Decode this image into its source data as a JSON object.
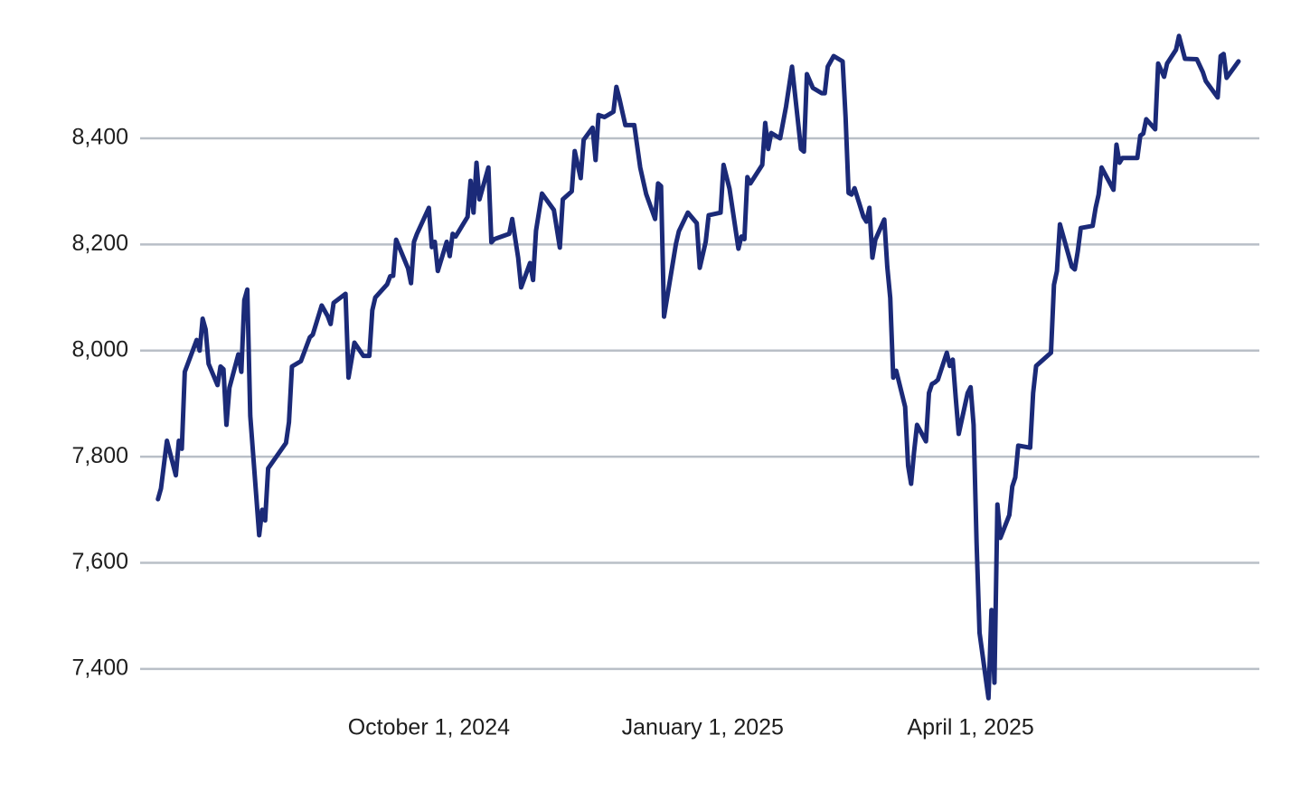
{
  "chart_data": {
    "type": "line",
    "x": [
      "2024-07-02",
      "2024-07-03",
      "2024-07-05",
      "2024-07-08",
      "2024-07-09",
      "2024-07-10",
      "2024-07-11",
      "2024-07-15",
      "2024-07-16",
      "2024-07-17",
      "2024-07-18",
      "2024-07-19",
      "2024-07-22",
      "2024-07-23",
      "2024-07-24",
      "2024-07-25",
      "2024-07-26",
      "2024-07-29",
      "2024-07-30",
      "2024-07-31",
      "2024-08-01",
      "2024-08-02",
      "2024-08-05",
      "2024-08-06",
      "2024-08-07",
      "2024-08-08",
      "2024-08-14",
      "2024-08-15",
      "2024-08-16",
      "2024-08-19",
      "2024-08-22",
      "2024-08-23",
      "2024-08-26",
      "2024-08-28",
      "2024-08-29",
      "2024-08-30",
      "2024-09-03",
      "2024-09-04",
      "2024-09-06",
      "2024-09-09",
      "2024-09-11",
      "2024-09-12",
      "2024-09-13",
      "2024-09-17",
      "2024-09-18",
      "2024-09-19",
      "2024-09-20",
      "2024-09-24",
      "2024-09-25",
      "2024-09-26",
      "2024-09-27",
      "2024-10-01",
      "2024-10-02",
      "2024-10-03",
      "2024-10-04",
      "2024-10-07",
      "2024-10-08",
      "2024-10-09",
      "2024-10-10",
      "2024-10-14",
      "2024-10-15",
      "2024-10-16",
      "2024-10-17",
      "2024-10-18",
      "2024-10-21",
      "2024-10-22",
      "2024-10-23",
      "2024-10-28",
      "2024-10-29",
      "2024-10-31",
      "2024-11-01",
      "2024-11-04",
      "2024-11-05",
      "2024-11-06",
      "2024-11-08",
      "2024-11-12",
      "2024-11-14",
      "2024-11-15",
      "2024-11-18",
      "2024-11-19",
      "2024-11-21",
      "2024-11-22",
      "2024-11-25",
      "2024-11-26",
      "2024-11-27",
      "2024-11-29",
      "2024-12-02",
      "2024-12-03",
      "2024-12-04",
      "2024-12-06",
      "2024-12-09",
      "2024-12-11",
      "2024-12-13",
      "2024-12-16",
      "2024-12-17",
      "2024-12-18",
      "2024-12-19",
      "2024-12-23",
      "2024-12-24",
      "2024-12-27",
      "2024-12-30",
      "2024-12-31",
      "2025-01-02",
      "2025-01-03",
      "2025-01-07",
      "2025-01-08",
      "2025-01-10",
      "2025-01-13",
      "2025-01-14",
      "2025-01-15",
      "2025-01-16",
      "2025-01-17",
      "2025-01-21",
      "2025-01-22",
      "2025-01-23",
      "2025-01-24",
      "2025-01-27",
      "2025-01-29",
      "2025-01-31",
      "2025-02-03",
      "2025-02-04",
      "2025-02-05",
      "2025-02-07",
      "2025-02-10",
      "2025-02-11",
      "2025-02-12",
      "2025-02-13",
      "2025-02-14",
      "2025-02-17",
      "2025-02-18",
      "2025-02-19",
      "2025-02-20",
      "2025-02-21",
      "2025-02-24",
      "2025-02-25",
      "2025-02-26",
      "2025-02-27",
      "2025-02-28",
      "2025-03-03",
      "2025-03-04",
      "2025-03-05",
      "2025-03-06",
      "2025-03-07",
      "2025-03-10",
      "2025-03-11",
      "2025-03-12",
      "2025-03-13",
      "2025-03-14",
      "2025-03-17",
      "2025-03-18",
      "2025-03-19",
      "2025-03-20",
      "2025-03-21",
      "2025-03-24",
      "2025-03-25",
      "2025-03-26",
      "2025-03-27",
      "2025-03-28",
      "2025-03-31",
      "2025-04-01",
      "2025-04-02",
      "2025-04-03",
      "2025-04-04",
      "2025-04-07",
      "2025-04-08",
      "2025-04-09",
      "2025-04-10",
      "2025-04-11",
      "2025-04-14",
      "2025-04-15",
      "2025-04-16",
      "2025-04-17",
      "2025-04-21",
      "2025-04-22",
      "2025-04-23",
      "2025-04-28",
      "2025-04-29",
      "2025-04-30",
      "2025-05-01",
      "2025-05-05",
      "2025-05-06",
      "2025-05-07",
      "2025-05-08",
      "2025-05-12",
      "2025-05-13",
      "2025-05-14",
      "2025-05-15",
      "2025-05-19",
      "2025-05-20",
      "2025-05-21",
      "2025-05-22",
      "2025-05-27",
      "2025-05-28",
      "2025-05-29",
      "2025-05-30",
      "2025-06-02",
      "2025-06-03",
      "2025-06-05",
      "2025-06-06",
      "2025-06-09",
      "2025-06-10",
      "2025-06-12",
      "2025-06-16",
      "2025-06-18",
      "2025-06-19",
      "2025-06-23",
      "2025-06-24",
      "2025-06-25",
      "2025-06-26",
      "2025-06-30"
    ],
    "series": [
      {
        "color": "#1b2a78",
        "values": [
          7720,
          7740,
          7830,
          7765,
          7830,
          7815,
          7960,
          8020,
          8000,
          8060,
          8040,
          7975,
          7935,
          7970,
          7965,
          7860,
          7930,
          7993,
          7960,
          8095,
          8115,
          7877,
          7652,
          7700,
          7680,
          7778,
          7826,
          7865,
          7970,
          7980,
          8025,
          8030,
          8085,
          8065,
          8050,
          8090,
          8107,
          7949,
          8015,
          7990,
          7990,
          8076,
          8100,
          8125,
          8140,
          8141,
          8209,
          8155,
          8127,
          8205,
          8220,
          8269,
          8195,
          8205,
          8150,
          8205,
          8178,
          8220,
          8215,
          8252,
          8320,
          8260,
          8354,
          8285,
          8345,
          8204,
          8210,
          8220,
          8248,
          8175,
          8119,
          8165,
          8133,
          8226,
          8296,
          8265,
          8194,
          8285,
          8300,
          8376,
          8325,
          8397,
          8420,
          8359,
          8444,
          8440,
          8450,
          8497,
          8475,
          8425,
          8425,
          8345,
          8295,
          8248,
          8315,
          8310,
          8064,
          8201,
          8225,
          8260,
          8240,
          8156,
          8205,
          8255,
          8260,
          8350,
          8305,
          8192,
          8215,
          8210,
          8327,
          8315,
          8350,
          8429,
          8380,
          8410,
          8400,
          8460,
          8535,
          8380,
          8375,
          8521,
          8495,
          8485,
          8485,
          8535,
          8545,
          8555,
          8545,
          8439,
          8297,
          8294,
          8306,
          8252,
          8243,
          8269,
          8175,
          8209,
          8247,
          8158,
          8099,
          7949,
          7962,
          7894,
          7783,
          7749,
          7809,
          7860,
          7829,
          7920,
          7937,
          7940,
          7945,
          7996,
          7971,
          7983,
          7911,
          7843,
          7920,
          7931,
          7860,
          7638,
          7468,
          7345,
          7511,
          7374,
          7710,
          7647,
          7690,
          7744,
          7761,
          7821,
          7817,
          7920,
          7971,
          7996,
          8124,
          8150,
          8238,
          8158,
          8153,
          8187,
          8231,
          8235,
          8269,
          8294,
          8345,
          8303,
          8388,
          8354,
          8363,
          8363,
          8405,
          8409,
          8436,
          8417,
          8541,
          8516,
          8541,
          8567,
          8593,
          8550,
          8549,
          8525,
          8508,
          8477,
          8555,
          8559,
          8514,
          8545
        ]
      }
    ],
    "xlim": [
      "2024-06-26",
      "2025-07-07"
    ],
    "xticks": [
      {
        "value": "2024-10-01",
        "label": "October 1, 2024"
      },
      {
        "value": "2025-01-01",
        "label": "January 1, 2025"
      },
      {
        "value": "2025-04-01",
        "label": "April 1, 2025"
      }
    ],
    "ylim": [
      7330,
      8660
    ],
    "yticks": [
      {
        "value": 7400,
        "label": "7,400"
      },
      {
        "value": 7600,
        "label": "7,600"
      },
      {
        "value": 7800,
        "label": "7,800"
      },
      {
        "value": 8000,
        "label": "8,000"
      },
      {
        "value": 8200,
        "label": "8,200"
      },
      {
        "value": 8400,
        "label": "8,400"
      }
    ],
    "grid": true
  }
}
